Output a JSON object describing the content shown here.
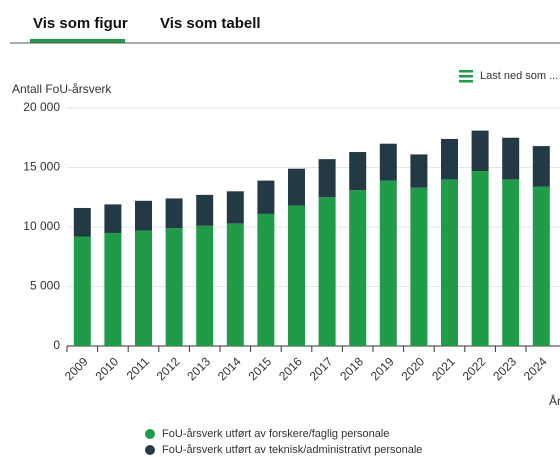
{
  "tabs": [
    "Vis som figur",
    "Vis som tabell"
  ],
  "download": "Last ned som ...",
  "chart_data": {
    "type": "bar",
    "stacked": true,
    "y_label": "Antall FoU-årsverk",
    "x_label": "År",
    "categories": [
      "2009",
      "2010",
      "2011",
      "2012",
      "2013",
      "2014",
      "2015",
      "2016",
      "2017",
      "2018",
      "2019",
      "2020",
      "2021",
      "2022",
      "2023",
      "2024"
    ],
    "series": [
      {
        "name": "FoU-årsverk utført av forskere/faglig personale",
        "color": "#1e9c48",
        "values": [
          9200,
          9500,
          9700,
          9900,
          10100,
          10300,
          11100,
          11800,
          12500,
          13100,
          13900,
          13300,
          14000,
          14700,
          14000,
          13400
        ]
      },
      {
        "name": "FoU-årsverk utført av teknisk/administrativt personale",
        "color": "#233a45",
        "values": [
          2400,
          2400,
          2500,
          2500,
          2600,
          2700,
          2800,
          3100,
          3200,
          3200,
          3100,
          2800,
          3400,
          3400,
          3500,
          3400
        ]
      }
    ],
    "ylim": [
      0,
      20000
    ],
    "yticks": [
      0,
      {
        "value": 5000,
        "label": "5 000"
      },
      {
        "value": 10000,
        "label": "10 000"
      },
      {
        "value": 15000,
        "label": "15 000"
      },
      {
        "value": 20000,
        "label": "20 000"
      }
    ],
    "grid": true
  }
}
